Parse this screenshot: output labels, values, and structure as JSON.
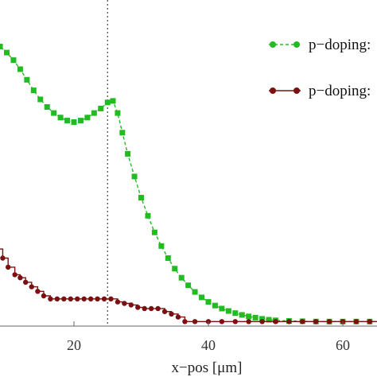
{
  "chart_data": {
    "type": "line",
    "title": "",
    "xlabel": "x−pos [μm]",
    "ylabel": "",
    "xlim": [
      7,
      67
    ],
    "ylim": [
      0,
      1
    ],
    "x_ticks": [
      20,
      40,
      60
    ],
    "marker_line_x": 25,
    "legend_position": "top-right",
    "grid": false,
    "series": [
      {
        "name": "p−doping:",
        "color": "#22bb22",
        "style": "dashed",
        "marker": "square",
        "points": [
          [
            7,
            0.95
          ],
          [
            8,
            0.935
          ],
          [
            9,
            0.925
          ],
          [
            10,
            0.905
          ],
          [
            11,
            0.88
          ],
          [
            12,
            0.85
          ],
          [
            13,
            0.815
          ],
          [
            14,
            0.78
          ],
          [
            15,
            0.75
          ],
          [
            16,
            0.725
          ],
          [
            17,
            0.705
          ],
          [
            18,
            0.69
          ],
          [
            19,
            0.68
          ],
          [
            20,
            0.675
          ],
          [
            21,
            0.68
          ],
          [
            22,
            0.69
          ],
          [
            23,
            0.705
          ],
          [
            24,
            0.72
          ],
          [
            25,
            0.74
          ],
          [
            25.8,
            0.745
          ],
          [
            26.5,
            0.705
          ],
          [
            27.2,
            0.64
          ],
          [
            28,
            0.57
          ],
          [
            29,
            0.495
          ],
          [
            30,
            0.425
          ],
          [
            31,
            0.365
          ],
          [
            32,
            0.31
          ],
          [
            33,
            0.265
          ],
          [
            34,
            0.225
          ],
          [
            35,
            0.19
          ],
          [
            36,
            0.16
          ],
          [
            37,
            0.135
          ],
          [
            38,
            0.113
          ],
          [
            39,
            0.095
          ],
          [
            40,
            0.08
          ],
          [
            41,
            0.068
          ],
          [
            42,
            0.058
          ],
          [
            43,
            0.05
          ],
          [
            44,
            0.043
          ],
          [
            45,
            0.037
          ],
          [
            46,
            0.032
          ],
          [
            47,
            0.028
          ],
          [
            48,
            0.024
          ],
          [
            49,
            0.021
          ],
          [
            50,
            0.019
          ],
          [
            52,
            0.017
          ],
          [
            54,
            0.016
          ],
          [
            56,
            0.015
          ],
          [
            58,
            0.015
          ],
          [
            60,
            0.015
          ],
          [
            62,
            0.015
          ],
          [
            64,
            0.015
          ],
          [
            66,
            0.015
          ]
        ]
      },
      {
        "name": "p−doping:",
        "color": "#7a1010",
        "style": "solid",
        "marker": "circle",
        "points": [
          [
            7,
            0.305
          ],
          [
            7.8,
            0.28
          ],
          [
            8.6,
            0.255
          ],
          [
            9.4,
            0.225
          ],
          [
            10.2,
            0.195
          ],
          [
            11.2,
            0.17
          ],
          [
            12,
            0.16
          ],
          [
            12.8,
            0.145
          ],
          [
            13.7,
            0.13
          ],
          [
            14.6,
            0.115
          ],
          [
            15.5,
            0.1
          ],
          [
            16.5,
            0.09
          ],
          [
            17.5,
            0.09
          ],
          [
            18.5,
            0.09
          ],
          [
            19.5,
            0.09
          ],
          [
            20.5,
            0.09
          ],
          [
            21.5,
            0.09
          ],
          [
            22.5,
            0.09
          ],
          [
            23.5,
            0.09
          ],
          [
            24.5,
            0.09
          ],
          [
            25.5,
            0.09
          ],
          [
            26.5,
            0.08
          ],
          [
            27.5,
            0.075
          ],
          [
            28.5,
            0.07
          ],
          [
            29.5,
            0.062
          ],
          [
            30.5,
            0.058
          ],
          [
            31.5,
            0.058
          ],
          [
            32.5,
            0.058
          ],
          [
            33.5,
            0.048
          ],
          [
            34.5,
            0.04
          ],
          [
            35.5,
            0.03
          ],
          [
            36.5,
            0.015
          ],
          [
            38,
            0.015
          ],
          [
            40,
            0.015
          ],
          [
            42,
            0.015
          ],
          [
            44,
            0.015
          ],
          [
            46,
            0.015
          ],
          [
            48,
            0.015
          ],
          [
            50,
            0.015
          ],
          [
            52,
            0.015
          ],
          [
            54,
            0.015
          ],
          [
            56,
            0.015
          ],
          [
            58,
            0.015
          ],
          [
            60,
            0.015
          ],
          [
            62,
            0.015
          ],
          [
            64,
            0.015
          ],
          [
            66,
            0.015
          ]
        ]
      }
    ]
  }
}
